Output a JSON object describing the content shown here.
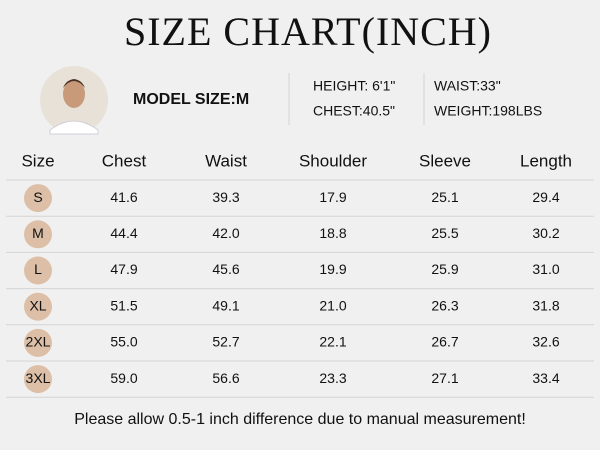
{
  "header": {
    "title": "SIZE CHART(INCH)"
  },
  "model": {
    "size": "MODEL SIZE:M",
    "height": "HEIGHT: 6'1\"",
    "chest": "CHEST:40.5\"",
    "waist": "WAIST:33\"",
    "weight": "WEIGHT:198LBS"
  },
  "table": {
    "columns": [
      "Size",
      "Chest",
      "Waist",
      "Shoulder",
      "Sleeve",
      "Length"
    ],
    "rows": [
      [
        "S",
        "41.6",
        "39.3",
        "17.9",
        "25.1",
        "29.4"
      ],
      [
        "M",
        "44.4",
        "42.0",
        "18.8",
        "25.5",
        "30.2"
      ],
      [
        "L",
        "47.9",
        "45.6",
        "19.9",
        "25.9",
        "31.0"
      ],
      [
        "XL",
        "51.5",
        "49.1",
        "21.0",
        "26.3",
        "31.8"
      ],
      [
        "2XL",
        "55.0",
        "52.7",
        "22.1",
        "26.7",
        "32.6"
      ],
      [
        "3XL",
        "59.0",
        "56.6",
        "23.3",
        "27.1",
        "33.4"
      ]
    ]
  },
  "footer": {
    "note": "Please allow 0.5-1 inch difference due to manual measurement!"
  }
}
